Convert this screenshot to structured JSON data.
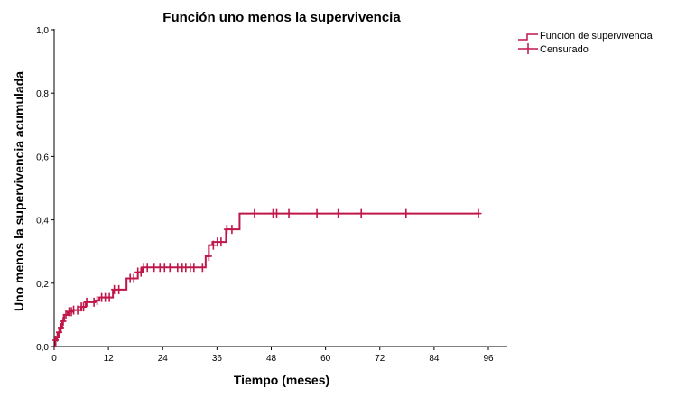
{
  "chart_data": {
    "type": "line",
    "title": "Función uno menos la supervivencia",
    "xlabel": "Tiempo (meses)",
    "ylabel": "Uno menos la supervivencia acumulada",
    "xlim": [
      0,
      96
    ],
    "ylim": [
      0,
      1
    ],
    "x_ticks": [
      0,
      12,
      24,
      36,
      48,
      60,
      72,
      84,
      96
    ],
    "y_ticks": [
      0,
      0.2,
      0.4,
      0.6,
      0.8,
      1.0
    ],
    "x_tick_labels": [
      "0",
      "12",
      "24",
      "36",
      "48",
      "60",
      "72",
      "84",
      "96"
    ],
    "y_tick_labels": [
      "0,0",
      "0,2",
      "0,4",
      "0,6",
      "0,8",
      "1,0"
    ],
    "grid": false,
    "legend_position": "top-right",
    "legend": [
      "Función de supervivencia",
      "Censurado"
    ],
    "color": "#c0174a",
    "series": [
      {
        "name": "Función de supervivencia",
        "x": [
          0,
          0.3,
          0.6,
          1.0,
          1.4,
          1.8,
          2.2,
          3.0,
          4.0,
          6.0,
          7.0,
          9.0,
          10.0,
          13.0,
          16.0,
          18.5,
          19.5,
          33.5,
          34.2,
          35.0,
          38.0,
          41.0,
          94.0
        ],
        "y": [
          0.0,
          0.02,
          0.03,
          0.045,
          0.06,
          0.08,
          0.1,
          0.11,
          0.115,
          0.125,
          0.14,
          0.145,
          0.155,
          0.18,
          0.215,
          0.235,
          0.25,
          0.285,
          0.32,
          0.33,
          0.37,
          0.42,
          0.42
        ]
      },
      {
        "name": "Censurado",
        "x": [
          0.3,
          0.7,
          1.1,
          1.5,
          2.0,
          2.6,
          3.3,
          3.8,
          4.3,
          5.2,
          6.0,
          6.5,
          7.2,
          8.8,
          9.5,
          10.5,
          11.3,
          12.2,
          13.3,
          14.3,
          16.8,
          17.6,
          18.5,
          19.2,
          19.8,
          20.6,
          22.1,
          23.4,
          24.4,
          25.6,
          27.3,
          28.3,
          29.1,
          30.1,
          30.9,
          32.8,
          34.2,
          35.2,
          36.1,
          36.9,
          38.2,
          39.3,
          44.3,
          48.4,
          49.2,
          51.9,
          58.1,
          62.8,
          67.9,
          77.8,
          93.8
        ],
        "y": [
          0.02,
          0.03,
          0.045,
          0.06,
          0.08,
          0.1,
          0.11,
          0.11,
          0.115,
          0.115,
          0.125,
          0.125,
          0.14,
          0.14,
          0.145,
          0.155,
          0.155,
          0.155,
          0.18,
          0.18,
          0.215,
          0.215,
          0.235,
          0.235,
          0.25,
          0.25,
          0.25,
          0.25,
          0.25,
          0.25,
          0.25,
          0.25,
          0.25,
          0.25,
          0.25,
          0.25,
          0.285,
          0.32,
          0.33,
          0.33,
          0.37,
          0.37,
          0.42,
          0.42,
          0.42,
          0.42,
          0.42,
          0.42,
          0.42,
          0.42,
          0.42
        ]
      }
    ]
  }
}
